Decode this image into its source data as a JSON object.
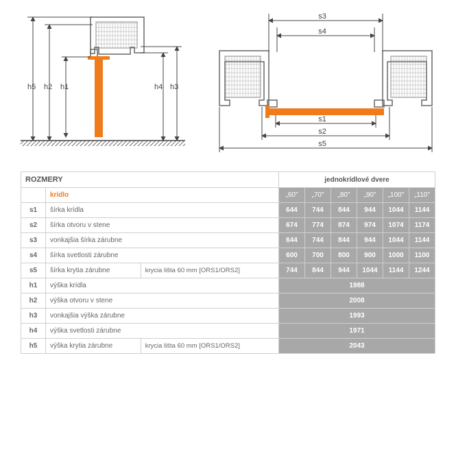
{
  "table": {
    "header_left": "ROZMERY",
    "header_right": "jednokrídlové dvere",
    "kridlo_label": "krídlo",
    "sizes": [
      "„60\"",
      "„70\"",
      "„80\"",
      "„90\"",
      "„100\"",
      "„110\""
    ],
    "rows_s": [
      {
        "code": "s1",
        "desc": "šírka krídla",
        "note": "",
        "vals": [
          "644",
          "744",
          "844",
          "944",
          "1044",
          "1144"
        ]
      },
      {
        "code": "s2",
        "desc": "šírka otvoru v stene",
        "note": "",
        "vals": [
          "674",
          "774",
          "874",
          "974",
          "1074",
          "1174"
        ]
      },
      {
        "code": "s3",
        "desc": "vonkajšia šírka zárubne",
        "note": "",
        "vals": [
          "644",
          "744",
          "844",
          "944",
          "1044",
          "1144"
        ]
      },
      {
        "code": "s4",
        "desc": "šírka svetlosti zárubne",
        "note": "",
        "vals": [
          "600",
          "700",
          "800",
          "900",
          "1000",
          "1100"
        ]
      },
      {
        "code": "s5",
        "desc": "šírka krytia zárubne",
        "note": "krycia lišta 60 mm [ORS1/ORS2]",
        "vals": [
          "744",
          "844",
          "944",
          "1044",
          "1144",
          "1244"
        ]
      }
    ],
    "rows_h": [
      {
        "code": "h1",
        "desc": "výška krídla",
        "note": "",
        "val": "1988"
      },
      {
        "code": "h2",
        "desc": "výška otvoru v stene",
        "note": "",
        "val": "2008"
      },
      {
        "code": "h3",
        "desc": "vonkajšia výška zárubne",
        "note": "",
        "val": "1993"
      },
      {
        "code": "h4",
        "desc": "výška svetlosti zárubne",
        "note": "",
        "val": "1971"
      },
      {
        "code": "h5",
        "desc": "výška krytia zárubne",
        "note": "krycia lišta 60 mm [ORS1/ORS2]",
        "val": "2043"
      }
    ]
  },
  "diagram": {
    "left_labels": [
      "h5",
      "h2",
      "h1",
      "h4",
      "h3"
    ],
    "right_labels": [
      "s3",
      "s4",
      "s1",
      "s2",
      "s5"
    ]
  },
  "colors": {
    "accent": "#ef7b1b",
    "gray_cell": "#a8a8a8",
    "border": "#cfcfcf",
    "stroke": "#555555",
    "hatch": "#bfbfbf"
  }
}
